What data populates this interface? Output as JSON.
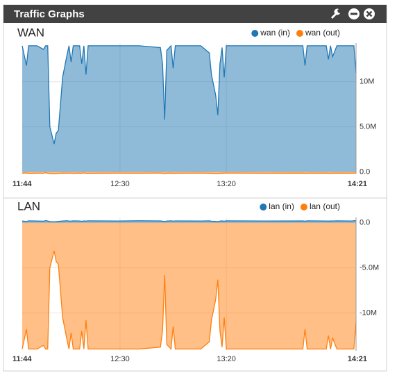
{
  "header": {
    "title": "Traffic Graphs"
  },
  "chart_data": [
    {
      "type": "area",
      "title": "WAN",
      "x": [
        704,
        706,
        707,
        711,
        714,
        715,
        716,
        717,
        719,
        720,
        721,
        723,
        725,
        726,
        727,
        728,
        731,
        732,
        733,
        734,
        735,
        749,
        759,
        769,
        770,
        771,
        772,
        774,
        775,
        776,
        788,
        792,
        793,
        795,
        796,
        797,
        798,
        799,
        800,
        818,
        836,
        837,
        838,
        847,
        848,
        849,
        850,
        852,
        859,
        860,
        861
      ],
      "xlim": [
        704,
        861
      ],
      "xticks": [
        {
          "value": 704,
          "label": "11:44"
        },
        {
          "value": 750,
          "label": "12:30"
        },
        {
          "value": 800,
          "label": "13:20"
        },
        {
          "value": 861,
          "label": "14:21"
        }
      ],
      "ylim": [
        -200000,
        14300000
      ],
      "yticks": [
        {
          "value": 0,
          "label": "0.0"
        },
        {
          "value": 5000000,
          "label": "5.0M"
        },
        {
          "value": 10000000,
          "label": "10M"
        }
      ],
      "grid": true,
      "series": [
        {
          "name": "wan (in)",
          "color": "#1f77b4",
          "values": [
            14000000,
            11800000,
            14000000,
            14000000,
            13600000,
            14000000,
            14000000,
            5000000,
            3100000,
            4300000,
            4600000,
            10500000,
            12900000,
            14000000,
            12200000,
            14000000,
            14000000,
            12000000,
            14000000,
            10800000,
            14000000,
            14000000,
            14000000,
            13800000,
            12000000,
            5800000,
            13500000,
            14000000,
            11500000,
            14000000,
            14000000,
            13200000,
            10800000,
            8500000,
            6300000,
            12000000,
            13800000,
            10500000,
            14000000,
            14000000,
            14000000,
            11800000,
            14000000,
            14000000,
            12500000,
            14000000,
            12800000,
            14000000,
            14000000,
            14000000,
            11000000
          ]
        },
        {
          "name": "wan (out)",
          "color": "#ff7f0e",
          "values": [
            -150000,
            -120000,
            -160000,
            -150000,
            -140000,
            -100000,
            -150000,
            -170000,
            -200000,
            -180000,
            -160000,
            -140000,
            -150000,
            -130000,
            -150000,
            -160000,
            -140000,
            -150000,
            -120000,
            -150000,
            -160000,
            -140000,
            -150000,
            -130000,
            -150000,
            -180000,
            -150000,
            -140000,
            -160000,
            -150000,
            -140000,
            -150000,
            -160000,
            -170000,
            -180000,
            -150000,
            -140000,
            -150000,
            -130000,
            -150000,
            -140000,
            -160000,
            -150000,
            -140000,
            -150000,
            -160000,
            -150000,
            -140000,
            -150000,
            -130000,
            -150000
          ]
        }
      ]
    },
    {
      "type": "area",
      "title": "LAN",
      "x": [
        704,
        706,
        707,
        711,
        714,
        715,
        716,
        717,
        719,
        720,
        721,
        723,
        725,
        726,
        727,
        728,
        731,
        732,
        733,
        734,
        735,
        749,
        759,
        769,
        770,
        771,
        772,
        774,
        775,
        776,
        788,
        792,
        793,
        795,
        796,
        797,
        798,
        799,
        800,
        818,
        836,
        837,
        838,
        847,
        848,
        849,
        850,
        852,
        859,
        860,
        861
      ],
      "xlim": [
        704,
        861
      ],
      "xticks": [
        {
          "value": 704,
          "label": "11:44"
        },
        {
          "value": 750,
          "label": "12:30"
        },
        {
          "value": 800,
          "label": "13:20"
        },
        {
          "value": 861,
          "label": "14:21"
        }
      ],
      "ylim": [
        -14200000,
        600000
      ],
      "yticks": [
        {
          "value": 0,
          "label": "0.0"
        },
        {
          "value": -5000000,
          "label": "-5.0M"
        },
        {
          "value": -10000000,
          "label": "-10M"
        }
      ],
      "grid": true,
      "series": [
        {
          "name": "lan (in)",
          "color": "#1f77b4",
          "values": [
            200000,
            150000,
            220000,
            200000,
            180000,
            250000,
            200000,
            150000,
            120000,
            140000,
            160000,
            200000,
            230000,
            200000,
            180000,
            220000,
            200000,
            170000,
            210000,
            190000,
            220000,
            200000,
            230000,
            210000,
            180000,
            150000,
            200000,
            220000,
            190000,
            210000,
            200000,
            220000,
            180000,
            160000,
            140000,
            190000,
            210000,
            180000,
            220000,
            200000,
            210000,
            180000,
            220000,
            200000,
            190000,
            210000,
            200000,
            220000,
            200000,
            230000,
            250000
          ]
        },
        {
          "name": "lan (out)",
          "color": "#ff7f0e",
          "values": [
            -14000000,
            -11800000,
            -14000000,
            -14000000,
            -13600000,
            -14000000,
            -14000000,
            -5000000,
            -3100000,
            -4300000,
            -4600000,
            -10500000,
            -12900000,
            -14000000,
            -12200000,
            -14000000,
            -14000000,
            -12000000,
            -14000000,
            -10800000,
            -14000000,
            -14000000,
            -14000000,
            -13800000,
            -12000000,
            -5800000,
            -13500000,
            -14000000,
            -11500000,
            -14000000,
            -14000000,
            -13200000,
            -10800000,
            -8500000,
            -6300000,
            -12000000,
            -13800000,
            -10500000,
            -14000000,
            -14000000,
            -14000000,
            -11800000,
            -14000000,
            -14000000,
            -12500000,
            -14000000,
            -12800000,
            -14000000,
            -14000000,
            -14000000,
            -11000000
          ]
        }
      ]
    }
  ]
}
